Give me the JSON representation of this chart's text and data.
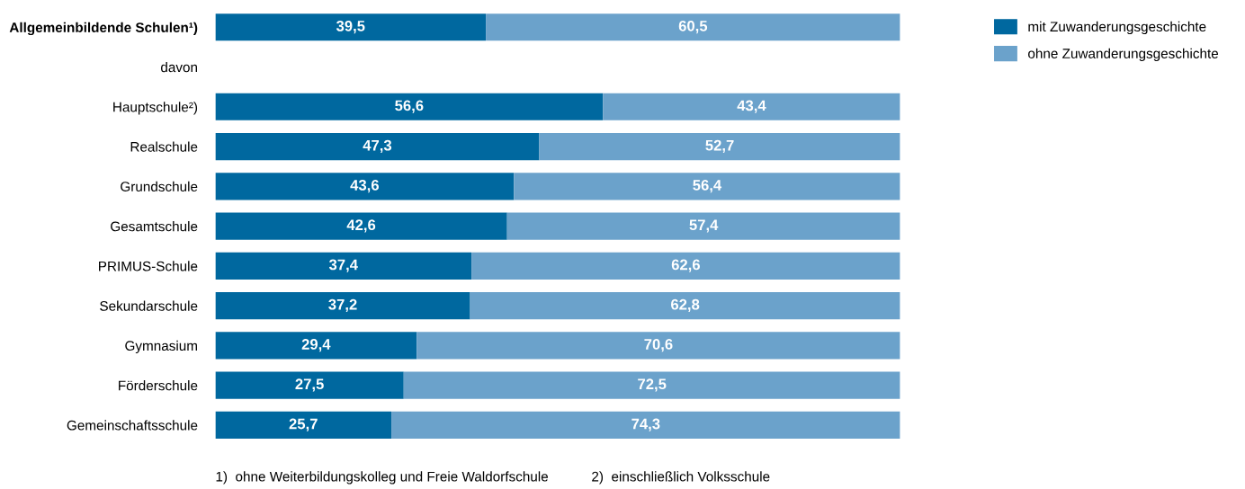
{
  "chart_data": {
    "type": "bar",
    "orientation": "horizontal",
    "stacked": true,
    "legend": "top right",
    "grid": false,
    "categories": [
      "Allgemeinbildende Schulen¹)",
      "davon",
      "Hauptschule²)",
      "Realschule",
      "Grundschule",
      "Gesamtschule",
      "PRIMUS-Schule",
      "Sekundarschule",
      "Gymnasium",
      "Förderschule",
      "Gemeinschaftsschule"
    ],
    "series": [
      {
        "name": "mit Zuwanderungsgeschichte",
        "color": "#00689f",
        "values": [
          39.5,
          null,
          56.6,
          47.3,
          43.6,
          42.6,
          37.4,
          37.2,
          29.4,
          27.5,
          25.7
        ],
        "value_labels": [
          "39,5",
          null,
          "56,6",
          "47,3",
          "43,6",
          "42,6",
          "37,4",
          "37,2",
          "29,4",
          "27,5",
          "25,7"
        ]
      },
      {
        "name": "ohne Zuwanderungsgeschichte",
        "color": "#6ba2cb",
        "values": [
          60.5,
          null,
          43.4,
          52.7,
          56.4,
          57.4,
          62.6,
          62.8,
          70.6,
          72.5,
          74.3
        ],
        "value_labels": [
          "60,5",
          null,
          "43,4",
          "52,7",
          "56,4",
          "57,4",
          "62,6",
          "62,8",
          "70,6",
          "72,5",
          "74,3"
        ]
      }
    ],
    "annotations": [
      "1)  ohne Weiterbildungskolleg und Freie Waldorfschule",
      "2)  einschließlich Volksschule"
    ]
  }
}
